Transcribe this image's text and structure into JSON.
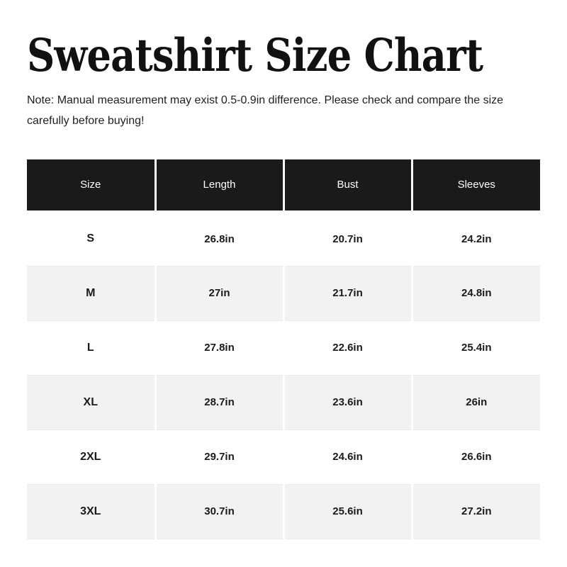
{
  "page": {
    "title": "Sweatshirt Size Chart",
    "note_line1": "Note: Manual measurement may exist 0.5-0.9in difference. Please check and compare the size",
    "note_line2": "carefully before buying!"
  },
  "colors": {
    "page_bg": "#ffffff",
    "title_text": "#111111",
    "note_text": "#1f1f1f",
    "header_bg": "#1a1a1a",
    "header_text": "#ffffff",
    "row_bg": "#ffffff",
    "row_alt_bg": "#f2f2f2",
    "cell_text": "#1a1a1a",
    "divider": "#ffffff",
    "row_line": "#eaeaea"
  },
  "chart_data": {
    "type": "table",
    "title": "Sweatshirt Size Chart",
    "note": "Note: Manual measurement may exist 0.5-0.9in difference. Please check and compare the size carefully before buying!",
    "unit": "in",
    "columns": [
      "Size",
      "Length",
      "Bust",
      "Sleeves"
    ],
    "rows": [
      [
        "S",
        "26.8in",
        "20.7in",
        "24.2in"
      ],
      [
        "M",
        "27in",
        "21.7in",
        "24.8in"
      ],
      [
        "L",
        "27.8in",
        "22.6in",
        "25.4in"
      ],
      [
        "XL",
        "28.7in",
        "23.6in",
        "26in"
      ],
      [
        "2XL",
        "29.7in",
        "24.6in",
        "26.6in"
      ],
      [
        "3XL",
        "30.7in",
        "25.6in",
        "27.2in"
      ]
    ]
  }
}
